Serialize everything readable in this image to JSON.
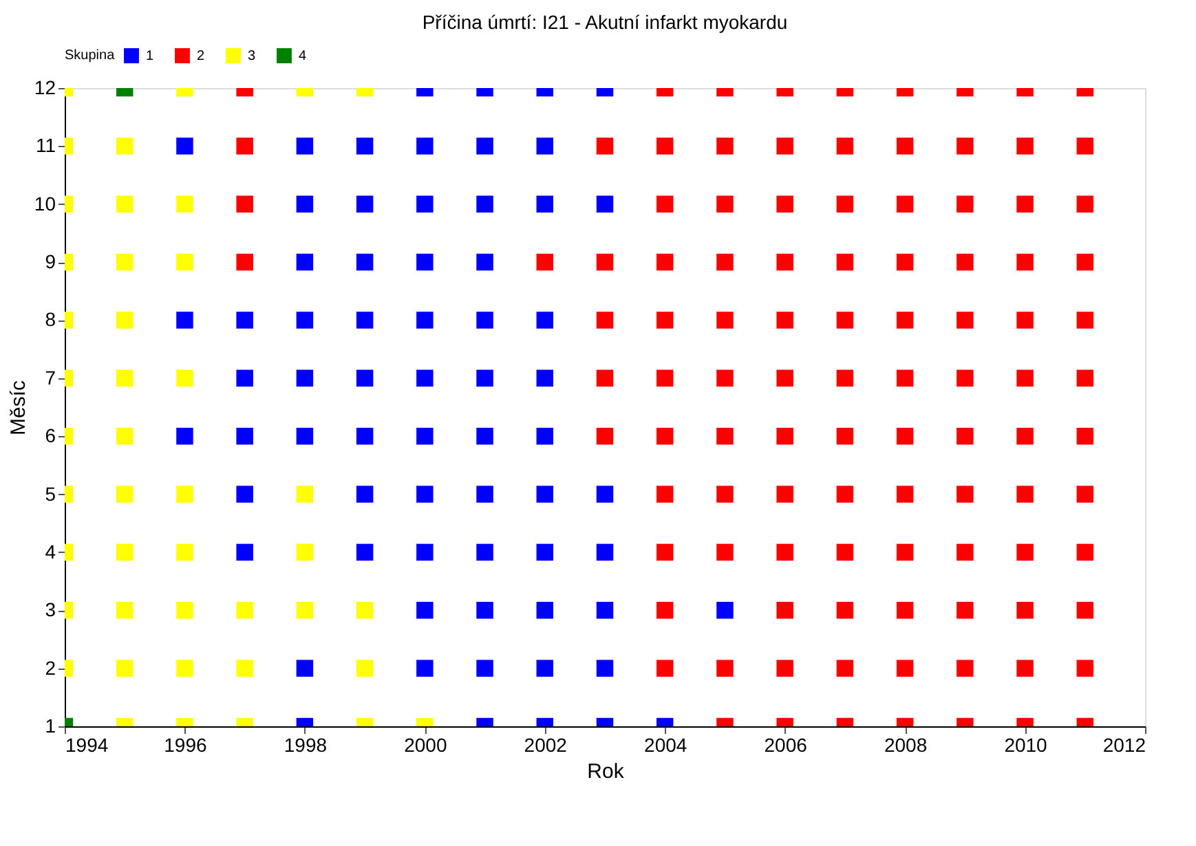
{
  "chart_data": {
    "type": "scatter",
    "title": "Příčina úmrtí:  I21  -  Akutní infarkt myokardu",
    "xlabel": "Rok",
    "ylabel": "Měsíc",
    "legend_title": "Skupina",
    "legend": "top",
    "marker": "square",
    "grid": false,
    "xlim": [
      1994,
      2012
    ],
    "xticks": [
      1994,
      1996,
      1998,
      2000,
      2002,
      2004,
      2006,
      2008,
      2010,
      2012
    ],
    "ylim": [
      1,
      12
    ],
    "yticks": [
      1,
      2,
      3,
      4,
      5,
      6,
      7,
      8,
      9,
      10,
      11,
      12
    ],
    "series": [
      {
        "name": "1",
        "color": "#0000ff",
        "x": [
          1996,
          1996,
          1996,
          1997,
          1997,
          1997,
          1997,
          1997,
          1998,
          1998,
          1998,
          1998,
          1998,
          1998,
          1998,
          1998,
          1999,
          1999,
          1999,
          1999,
          1999,
          1999,
          1999,
          1999,
          2000,
          2000,
          2000,
          2000,
          2000,
          2000,
          2000,
          2000,
          2000,
          2000,
          2000,
          2001,
          2001,
          2001,
          2001,
          2001,
          2001,
          2001,
          2001,
          2001,
          2001,
          2001,
          2001,
          2002,
          2002,
          2002,
          2002,
          2002,
          2002,
          2002,
          2002,
          2002,
          2002,
          2002,
          2003,
          2003,
          2003,
          2003,
          2003,
          2003,
          2003,
          2004,
          2005
        ],
        "values": [
          6,
          8,
          11,
          4,
          5,
          6,
          7,
          8,
          1,
          2,
          6,
          7,
          8,
          9,
          10,
          11,
          4,
          5,
          6,
          7,
          8,
          9,
          10,
          11,
          2,
          3,
          4,
          5,
          6,
          7,
          8,
          9,
          10,
          11,
          12,
          1,
          2,
          3,
          4,
          5,
          6,
          7,
          8,
          9,
          10,
          11,
          12,
          1,
          2,
          3,
          4,
          5,
          6,
          7,
          8,
          10,
          11,
          12,
          1,
          2,
          3,
          4,
          5,
          10,
          12,
          1,
          3
        ]
      },
      {
        "name": "2",
        "color": "#ff0000",
        "x": [
          1997,
          1997,
          1997,
          1997,
          2002,
          2003,
          2003,
          2003,
          2003,
          2003,
          2004,
          2004,
          2004,
          2004,
          2004,
          2004,
          2004,
          2004,
          2004,
          2004,
          2004,
          2005,
          2005,
          2005,
          2005,
          2005,
          2005,
          2005,
          2005,
          2005,
          2005,
          2005,
          2006,
          2006,
          2006,
          2006,
          2006,
          2006,
          2006,
          2006,
          2006,
          2006,
          2006,
          2006,
          2007,
          2007,
          2007,
          2007,
          2007,
          2007,
          2007,
          2007,
          2007,
          2007,
          2007,
          2007,
          2008,
          2008,
          2008,
          2008,
          2008,
          2008,
          2008,
          2008,
          2008,
          2008,
          2008,
          2008,
          2009,
          2009,
          2009,
          2009,
          2009,
          2009,
          2009,
          2009,
          2009,
          2009,
          2009,
          2009,
          2010,
          2010,
          2010,
          2010,
          2010,
          2010,
          2010,
          2010,
          2010,
          2010,
          2010,
          2010,
          2011,
          2011,
          2011,
          2011,
          2011,
          2011,
          2011,
          2011,
          2011,
          2011,
          2011,
          2011
        ],
        "values": [
          9,
          10,
          11,
          12,
          9,
          6,
          7,
          8,
          9,
          11,
          2,
          3,
          4,
          5,
          6,
          7,
          8,
          9,
          10,
          11,
          12,
          1,
          2,
          4,
          5,
          6,
          7,
          8,
          9,
          10,
          11,
          12,
          1,
          2,
          3,
          4,
          5,
          6,
          7,
          8,
          9,
          10,
          11,
          12,
          1,
          2,
          3,
          4,
          5,
          6,
          7,
          8,
          9,
          10,
          11,
          12,
          1,
          2,
          3,
          4,
          5,
          6,
          7,
          8,
          9,
          10,
          11,
          12,
          1,
          2,
          3,
          4,
          5,
          6,
          7,
          8,
          9,
          10,
          11,
          12,
          1,
          2,
          3,
          4,
          5,
          6,
          7,
          8,
          9,
          10,
          11,
          12,
          1,
          2,
          3,
          4,
          5,
          6,
          7,
          8,
          9,
          10,
          11,
          12
        ]
      },
      {
        "name": "3",
        "color": "#ffff00",
        "x": [
          1994,
          1994,
          1994,
          1994,
          1994,
          1994,
          1994,
          1994,
          1994,
          1994,
          1994,
          1995,
          1995,
          1995,
          1995,
          1995,
          1995,
          1995,
          1995,
          1995,
          1995,
          1995,
          1996,
          1996,
          1996,
          1996,
          1996,
          1996,
          1996,
          1996,
          1996,
          1997,
          1997,
          1997,
          1998,
          1998,
          1998,
          1998,
          1999,
          1999,
          1999,
          1999,
          2000
        ],
        "values": [
          2,
          3,
          4,
          5,
          6,
          7,
          8,
          9,
          10,
          11,
          12,
          1,
          2,
          3,
          4,
          5,
          6,
          7,
          8,
          9,
          10,
          11,
          1,
          2,
          3,
          4,
          5,
          7,
          9,
          10,
          12,
          1,
          2,
          3,
          3,
          4,
          5,
          12,
          1,
          2,
          3,
          12,
          1
        ]
      },
      {
        "name": "4",
        "color": "#008000",
        "x": [
          1994,
          1995
        ],
        "values": [
          1,
          12
        ]
      }
    ]
  }
}
